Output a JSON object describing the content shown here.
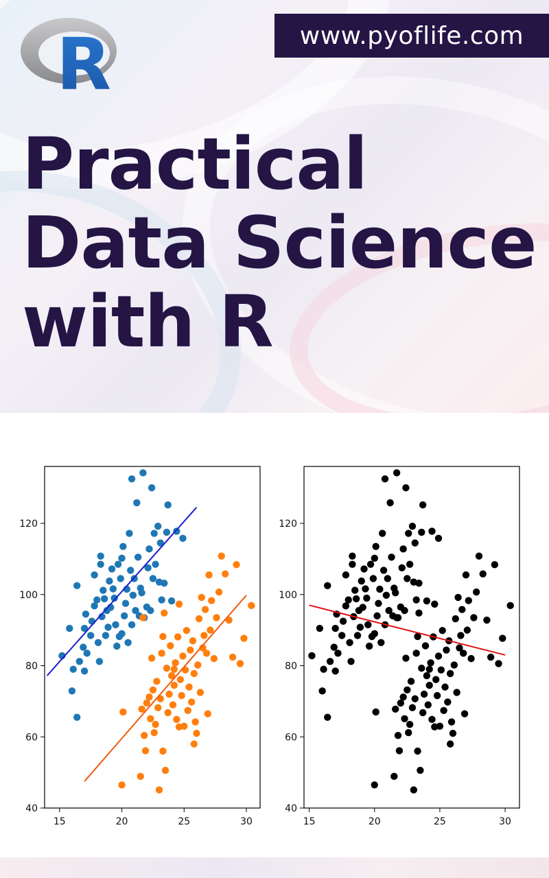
{
  "header": {
    "url": "www.pyoflife.com",
    "logo_letter": "R"
  },
  "title_lines": [
    "Practical",
    "Data Science",
    "with R"
  ],
  "colors": {
    "title": "#241545",
    "url_bg": "#241545",
    "logo_ring": "#9a9a9a",
    "logo_letter": "#1f63b8",
    "series_blue": "#1f77b4",
    "series_orange": "#ff7f0e",
    "fit_blue": "#1a1fd0",
    "fit_orange": "#f05a0a",
    "fit_red": "#e01010",
    "black": "#000000"
  },
  "chart_data": [
    {
      "type": "scatter",
      "xlim": [
        13.8,
        31.1
      ],
      "ylim": [
        40,
        136
      ],
      "xticks": [
        15,
        20,
        25,
        30
      ],
      "yticks": [
        40,
        60,
        80,
        100,
        120
      ],
      "series": [
        {
          "color": "blue",
          "points": [
            [
              15.2,
              82.8
            ],
            [
              15.8,
              90.5
            ],
            [
              16.0,
              72.9
            ],
            [
              16.1,
              79.0
            ],
            [
              16.4,
              65.5
            ],
            [
              16.4,
              102.5
            ],
            [
              16.6,
              81.2
            ],
            [
              16.9,
              85.2
            ],
            [
              17.0,
              78.5
            ],
            [
              17.0,
              90.5
            ],
            [
              17.1,
              94.5
            ],
            [
              17.2,
              83.5
            ],
            [
              17.5,
              88.5
            ],
            [
              17.6,
              92.5
            ],
            [
              17.8,
              96.8
            ],
            [
              17.8,
              105.5
            ],
            [
              18.0,
              98.5
            ],
            [
              18.1,
              86.5
            ],
            [
              18.2,
              81.2
            ],
            [
              18.3,
              110.8
            ],
            [
              18.3,
              108.5
            ],
            [
              18.4,
              93.8
            ],
            [
              18.5,
              101.2
            ],
            [
              18.6,
              98.8
            ],
            [
              18.7,
              88.5
            ],
            [
              18.8,
              95.5
            ],
            [
              19.0,
              103.8
            ],
            [
              19.1,
              96.4
            ],
            [
              19.2,
              107.2
            ],
            [
              19.3,
              101.6
            ],
            [
              19.4,
              99.0
            ],
            [
              19.5,
              91.5
            ],
            [
              19.6,
              85.5
            ],
            [
              19.7,
              108.5
            ],
            [
              19.9,
              104.5
            ],
            [
              20.0,
              89.0
            ],
            [
              20.0,
              110.2
            ],
            [
              20.1,
              113.5
            ],
            [
              20.2,
              94.0
            ],
            [
              20.3,
              97.5
            ],
            [
              20.4,
              101.5
            ],
            [
              20.5,
              86.5
            ],
            [
              20.6,
              117.2
            ],
            [
              20.7,
              106.8
            ],
            [
              20.8,
              91.5
            ],
            [
              20.9,
              99.8
            ],
            [
              21.0,
              104.5
            ],
            [
              21.1,
              95.5
            ],
            [
              21.2,
              125.8
            ],
            [
              21.3,
              110.5
            ],
            [
              21.4,
              94.0
            ],
            [
              21.5,
              101.8
            ],
            [
              21.7,
              134.2
            ],
            [
              21.8,
              93.5
            ],
            [
              22.0,
              96.5
            ],
            [
              22.1,
              107.5
            ],
            [
              22.2,
              112.8
            ],
            [
              22.4,
              130.0
            ],
            [
              22.5,
              104.5
            ],
            [
              22.6,
              117.2
            ],
            [
              22.7,
              108.5
            ],
            [
              22.9,
              119.2
            ],
            [
              23.0,
              103.5
            ],
            [
              23.1,
              114.5
            ],
            [
              23.2,
              98.5
            ],
            [
              23.4,
              103.2
            ],
            [
              23.6,
              117.5
            ],
            [
              23.7,
              125.2
            ],
            [
              24.0,
              98.2
            ],
            [
              24.4,
              117.8
            ],
            [
              24.9,
              115.8
            ],
            [
              20.8,
              132.5
            ],
            [
              19.8,
              88.2
            ],
            [
              18.9,
              90.8
            ],
            [
              21.6,
              100.5
            ],
            [
              22.3,
              95.5
            ]
          ]
        },
        {
          "color": "orange",
          "points": [
            [
              20.0,
              46.5
            ],
            [
              20.1,
              67.0
            ],
            [
              21.5,
              48.9
            ],
            [
              21.6,
              67.8
            ],
            [
              21.7,
              93.5
            ],
            [
              21.8,
              60.4
            ],
            [
              21.9,
              56.1
            ],
            [
              22.0,
              69.5
            ],
            [
              22.2,
              71.2
            ],
            [
              22.3,
              65.1
            ],
            [
              22.4,
              82.1
            ],
            [
              22.5,
              73.2
            ],
            [
              22.6,
              61.2
            ],
            [
              22.8,
              75.6
            ],
            [
              22.9,
              68.2
            ],
            [
              23.0,
              45.1
            ],
            [
              23.1,
              70.7
            ],
            [
              23.2,
              83.5
            ],
            [
              23.3,
              88.2
            ],
            [
              23.4,
              94.8
            ],
            [
              23.5,
              50.6
            ],
            [
              23.6,
              79.3
            ],
            [
              23.7,
              66.8
            ],
            [
              23.8,
              72.0
            ],
            [
              23.9,
              85.6
            ],
            [
              24.0,
              77.2
            ],
            [
              24.1,
              69.0
            ],
            [
              24.2,
              74.5
            ],
            [
              24.3,
              80.8
            ],
            [
              24.4,
              64.9
            ],
            [
              24.5,
              88.1
            ],
            [
              24.6,
              97.3
            ],
            [
              24.7,
              76.1
            ],
            [
              24.8,
              71.6
            ],
            [
              24.9,
              82.7
            ],
            [
              25.0,
              63.0
            ],
            [
              25.1,
              78.8
            ],
            [
              25.2,
              89.9
            ],
            [
              25.3,
              67.4
            ],
            [
              25.4,
              74.0
            ],
            [
              25.5,
              84.4
            ],
            [
              25.6,
              69.8
            ],
            [
              25.7,
              87.0
            ],
            [
              25.8,
              77.8
            ],
            [
              25.9,
              64.2
            ],
            [
              26.0,
              61.0
            ],
            [
              26.1,
              80.2
            ],
            [
              26.2,
              93.2
            ],
            [
              26.3,
              72.5
            ],
            [
              26.4,
              99.2
            ],
            [
              26.5,
              85.0
            ],
            [
              26.7,
              95.8
            ],
            [
              26.9,
              66.5
            ],
            [
              27.0,
              105.5
            ],
            [
              27.2,
              98.3
            ],
            [
              27.4,
              82.0
            ],
            [
              27.6,
              93.5
            ],
            [
              27.8,
              100.7
            ],
            [
              28.0,
              110.8
            ],
            [
              28.3,
              105.8
            ],
            [
              28.6,
              92.8
            ],
            [
              28.9,
              82.4
            ],
            [
              29.2,
              108.4
            ],
            [
              29.5,
              80.6
            ],
            [
              29.8,
              87.7
            ],
            [
              30.4,
              96.9
            ],
            [
              24.6,
              62.8
            ],
            [
              25.8,
              58.0
            ],
            [
              26.6,
              88.5
            ],
            [
              27.1,
              90.0
            ],
            [
              23.3,
              56.0
            ],
            [
              22.7,
              63.5
            ],
            [
              26.8,
              83.5
            ],
            [
              24.2,
              79.0
            ]
          ]
        }
      ],
      "fits": [
        {
          "color": "blue",
          "from": [
            14.0,
            77.2
          ],
          "to": [
            26.0,
            124.5
          ]
        },
        {
          "color": "orange",
          "from": [
            17.0,
            47.5
          ],
          "to": [
            30.0,
            99.8
          ]
        }
      ]
    },
    {
      "type": "scatter",
      "xlim": [
        14.6,
        31.1
      ],
      "ylim": [
        40,
        136
      ],
      "xticks": [
        15,
        20,
        25,
        30
      ],
      "yticks": [
        40,
        60,
        80,
        100,
        120
      ],
      "series": [
        {
          "color": "black",
          "points_from": "all_of_first_chart"
        }
      ],
      "fits": [
        {
          "color": "red",
          "from": [
            15.0,
            97.0
          ],
          "to": [
            30.0,
            83.0
          ]
        }
      ]
    }
  ]
}
